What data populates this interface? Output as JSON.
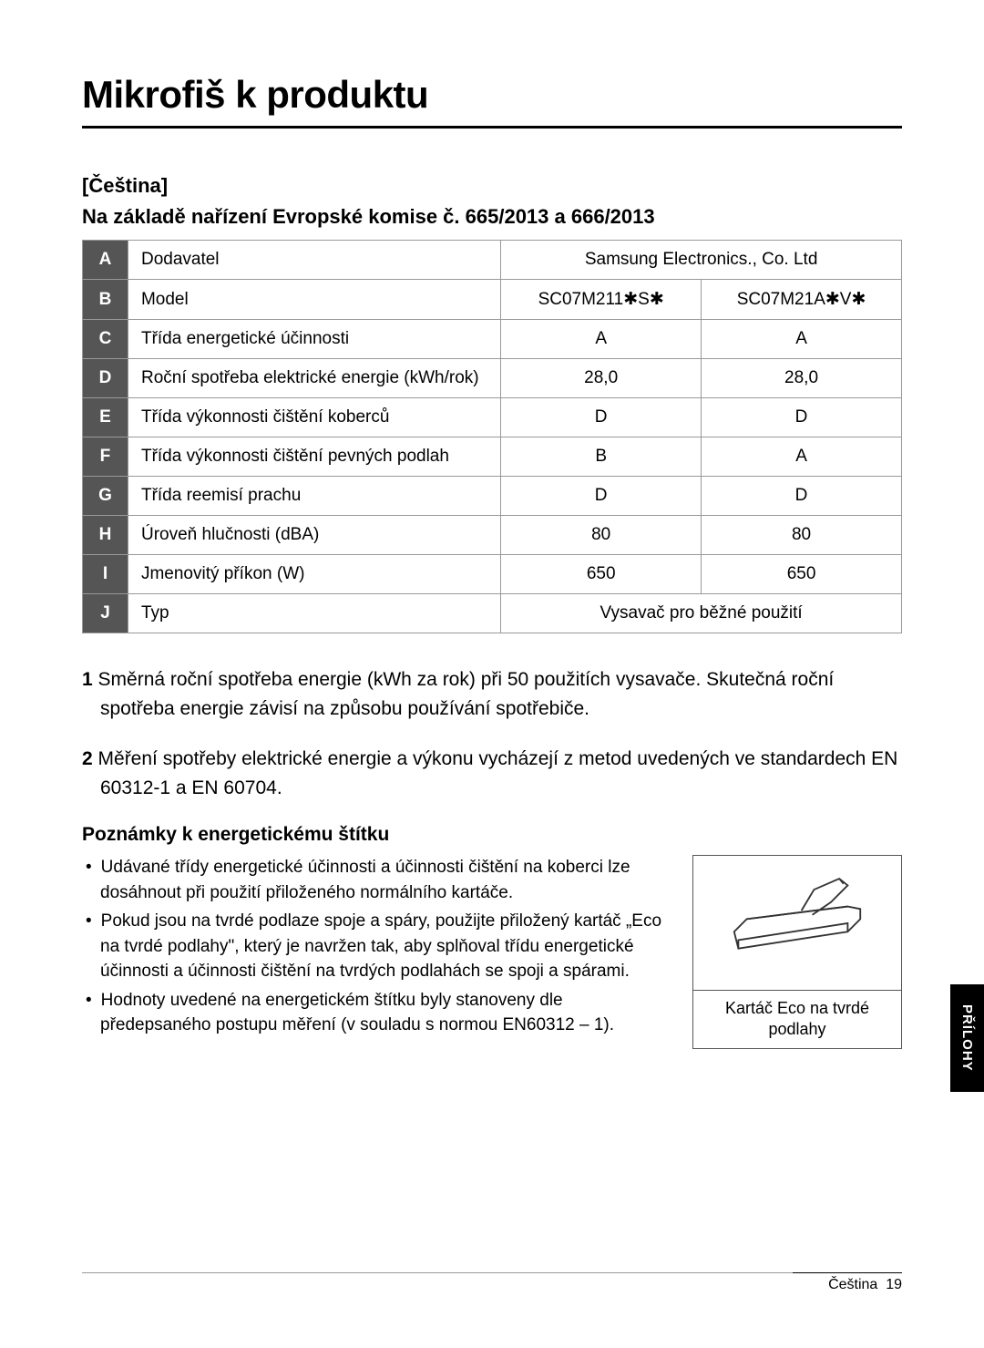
{
  "title": "Mikrofiš k produktu",
  "lang_label": "[Čeština]",
  "regulation_subtitle": "Na základě nařízení Evropské komise č. 665/2013 a 666/2013",
  "table": {
    "rows": [
      {
        "label": "A",
        "desc": "Dodavatel",
        "merged": true,
        "value": "Samsung Electronics., Co. Ltd"
      },
      {
        "label": "B",
        "desc": "Model",
        "v1": "SC07M211✱S✱",
        "v2": "SC07M21A✱V✱"
      },
      {
        "label": "C",
        "desc": "Třída energetické účinnosti",
        "v1": "A",
        "v2": "A"
      },
      {
        "label": "D",
        "desc": "Roční spotřeba elektrické energie (kWh/rok)",
        "v1": "28,0",
        "v2": "28,0"
      },
      {
        "label": "E",
        "desc": "Třída výkonnosti čištění koberců",
        "v1": "D",
        "v2": "D"
      },
      {
        "label": "F",
        "desc": "Třída výkonnosti čištění pevných podlah",
        "v1": "B",
        "v2": "A"
      },
      {
        "label": "G",
        "desc": "Třída reemisí prachu",
        "v1": "D",
        "v2": "D"
      },
      {
        "label": "H",
        "desc": "Úroveň hlučnosti (dBA)",
        "v1": "80",
        "v2": "80"
      },
      {
        "label": "I",
        "desc": "Jmenovitý příkon (W)",
        "v1": "650",
        "v2": "650"
      },
      {
        "label": "J",
        "desc": "Typ",
        "merged": true,
        "value": "Vysavač pro běžné použití"
      }
    ]
  },
  "numbered_notes": [
    {
      "num": "1",
      "text": "Směrná roční spotřeba energie (kWh za rok) při 50 použitích vysavače. Skutečná roční spotřeba energie závisí na způsobu používání spotřebiče."
    },
    {
      "num": "2",
      "text": "Měření spotřeby elektrické energie a výkonu vycházejí z metod uvedených ve standardech EN 60312-1 a EN 60704."
    }
  ],
  "notes_title": "Poznámky k energetickému štítku",
  "bullets": [
    "Udávané třídy energetické účinnosti a účinnosti čištění na koberci lze dosáhnout při použití přiloženého normálního kartáče.",
    "Pokud jsou na tvrdé podlaze spoje a spáry, použijte přiložený kartáč „Eco na tvrdé podlahy\", který je navržen tak, aby splňoval třídu energetické účinnosti a účinnosti čištění na tvrdých podlahách se spoji a spárami.",
    "Hodnoty uvedené na energetickém štítku byly stanoveny dle předepsaného postupu měření (v souladu s normou EN60312 – 1)."
  ],
  "figure_caption": "Kartáč Eco na tvrdé podlahy",
  "side_tab": "PŘÍLOHY",
  "footer_lang": "Čeština",
  "footer_page": "19",
  "colors": {
    "row_label_bg": "#555555",
    "row_label_fg": "#ffffff",
    "border": "#999999"
  }
}
